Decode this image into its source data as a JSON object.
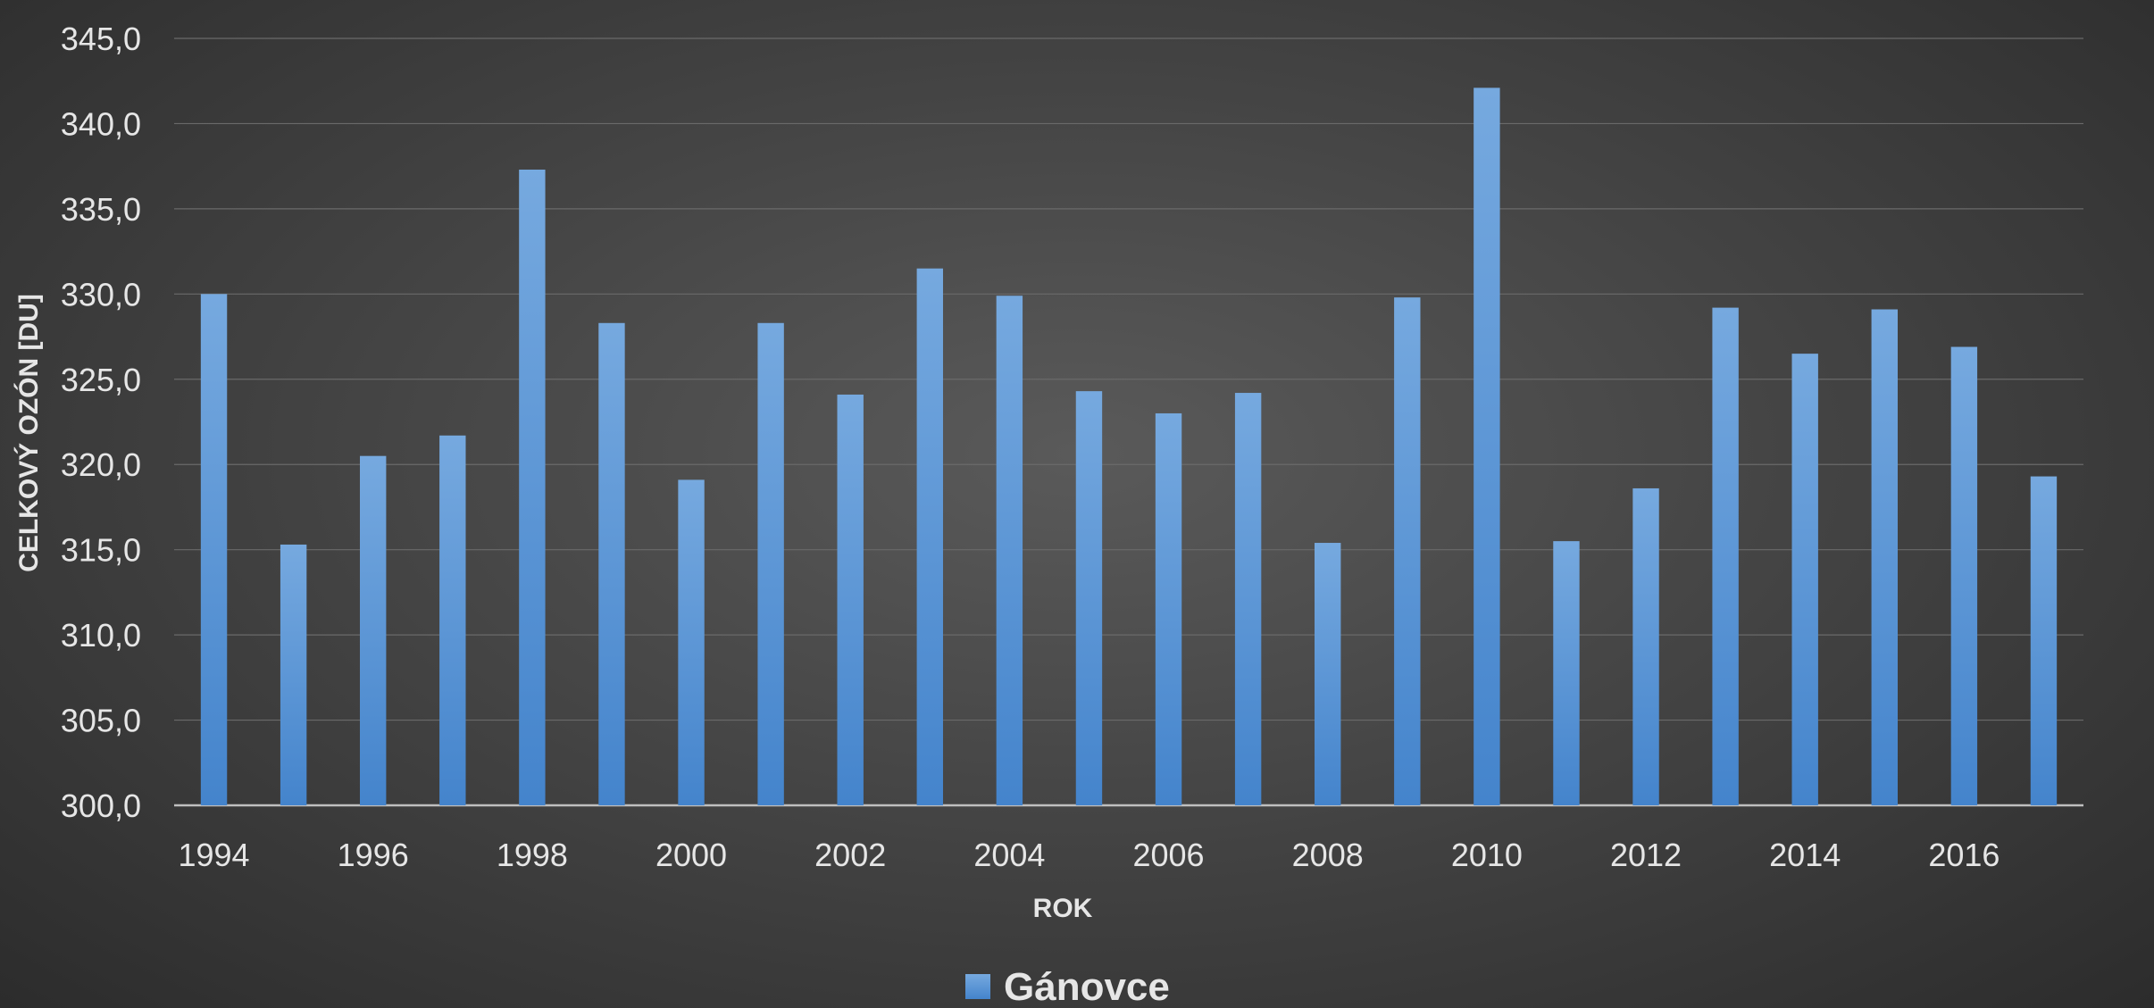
{
  "chart_data": {
    "type": "bar",
    "categories": [
      "1994",
      "1995",
      "1996",
      "1997",
      "1998",
      "1999",
      "2000",
      "2001",
      "2002",
      "2003",
      "2004",
      "2005",
      "2006",
      "2007",
      "2008",
      "2009",
      "2010",
      "2011",
      "2012",
      "2013",
      "2014",
      "2015",
      "2016",
      "2017"
    ],
    "x_tick_labels": [
      "1994",
      "1996",
      "1998",
      "2000",
      "2002",
      "2004",
      "2006",
      "2008",
      "2010",
      "2012",
      "2014",
      "2016"
    ],
    "series": [
      {
        "name": "Gánovce",
        "values": [
          330.0,
          315.3,
          320.5,
          321.7,
          337.3,
          328.3,
          319.1,
          328.3,
          324.1,
          331.5,
          329.9,
          324.3,
          323.0,
          324.2,
          315.4,
          329.8,
          342.1,
          315.5,
          318.6,
          329.2,
          326.5,
          329.1,
          326.9,
          319.3
        ]
      }
    ],
    "xlabel": "ROK",
    "ylabel": "CELKOVÝ OZÓN [DU]",
    "ylim": [
      300.0,
      345.0
    ],
    "y_ticks": [
      "300,0",
      "305,0",
      "310,0",
      "315,0",
      "320,0",
      "325,0",
      "330,0",
      "335,0",
      "340,0",
      "345,0"
    ],
    "grid": true,
    "legend_position": "bottom",
    "colors": {
      "bar_top": "#76a9df",
      "bar_bottom": "#4484cc",
      "gridline": "#6a6a6a",
      "axis_line": "#bfbfbf",
      "text": "#e6e6e6"
    }
  }
}
